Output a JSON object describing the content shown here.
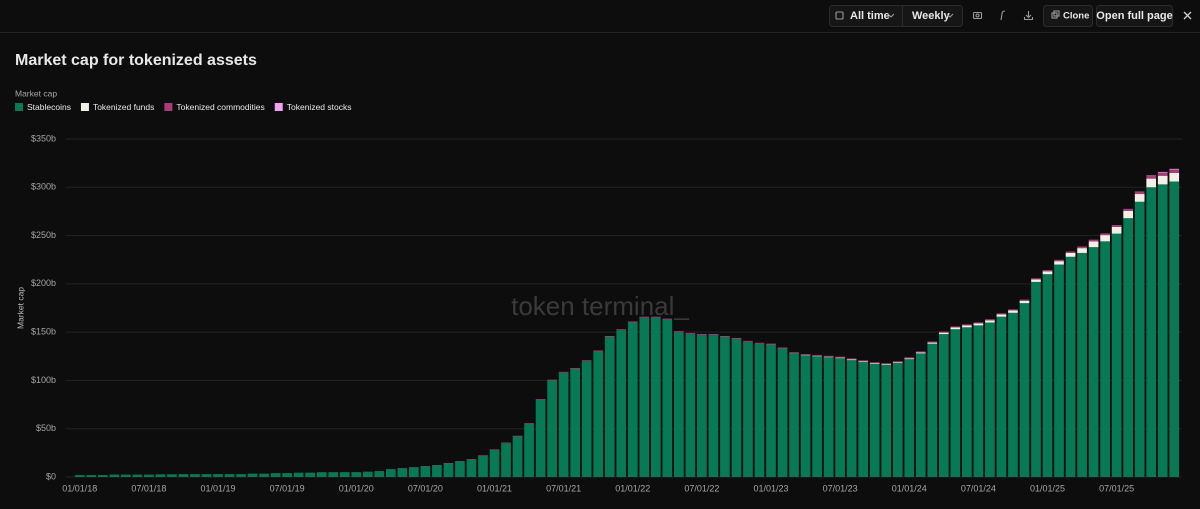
{
  "toolbar": {
    "range": "All time",
    "interval": "Weekly",
    "clone": "Clone",
    "open": "Open full page"
  },
  "chart_data": {
    "type": "bar",
    "stacked": true,
    "title": "Market cap for tokenized assets",
    "legend_title": "Market cap",
    "y_label": "Market cap",
    "watermark": "token terminal_",
    "grid": true,
    "ylim": [
      0,
      350
    ],
    "yticks": [
      {
        "value": 0,
        "label": "$0"
      },
      {
        "value": 50,
        "label": "$50b"
      },
      {
        "value": 100,
        "label": "$100b"
      },
      {
        "value": 150,
        "label": "$150b"
      },
      {
        "value": 200,
        "label": "$200b"
      },
      {
        "value": 250,
        "label": "$250b"
      },
      {
        "value": 300,
        "label": "$300b"
      },
      {
        "value": 350,
        "label": "$350b"
      }
    ],
    "categories": [
      "01/01/18",
      null,
      null,
      null,
      null,
      null,
      "07/01/18",
      null,
      null,
      null,
      null,
      null,
      "01/01/19",
      null,
      null,
      null,
      null,
      null,
      "07/01/19",
      null,
      null,
      null,
      null,
      null,
      "01/01/20",
      null,
      null,
      null,
      null,
      null,
      "07/01/20",
      null,
      null,
      null,
      null,
      null,
      "01/01/21",
      null,
      null,
      null,
      null,
      null,
      "07/01/21",
      null,
      null,
      null,
      null,
      null,
      "01/01/22",
      null,
      null,
      null,
      null,
      null,
      "07/01/22",
      null,
      null,
      null,
      null,
      null,
      "01/01/23",
      null,
      null,
      null,
      null,
      null,
      "07/01/23",
      null,
      null,
      null,
      null,
      null,
      "01/01/24",
      null,
      null,
      null,
      null,
      null,
      "07/01/24",
      null,
      null,
      null,
      null,
      null,
      "01/01/25",
      null,
      null,
      null,
      null,
      null,
      "07/01/25",
      null,
      null,
      null,
      null,
      null
    ],
    "series": [
      {
        "name": "Stablecoins",
        "color": "#077a55",
        "values": [
          2,
          2,
          2,
          2.5,
          2.5,
          2.5,
          2.5,
          2.8,
          2.8,
          3,
          3,
          3,
          3,
          3,
          3,
          3.5,
          3.5,
          4,
          4,
          4.5,
          4.5,
          5,
          5,
          5,
          5,
          5.5,
          6,
          8,
          9,
          10,
          11,
          12,
          14,
          16,
          18,
          22,
          28,
          35,
          42,
          55,
          80,
          100,
          108,
          112,
          120,
          130,
          145,
          152,
          160,
          165,
          165,
          163,
          150,
          148,
          147,
          147,
          145,
          143,
          140,
          138,
          137,
          133,
          128,
          126,
          125,
          124,
          123,
          121,
          119,
          117,
          116,
          118,
          122,
          128,
          138,
          148,
          153,
          155,
          157,
          160,
          166,
          170,
          180,
          202,
          210,
          220,
          228,
          232,
          238,
          244,
          252,
          268,
          285,
          300,
          303,
          306
        ]
      },
      {
        "name": "Tokenized funds",
        "color": "#f2efe6",
        "values": [
          0,
          0,
          0,
          0,
          0,
          0,
          0,
          0,
          0,
          0,
          0,
          0,
          0,
          0,
          0,
          0,
          0,
          0,
          0,
          0,
          0,
          0,
          0,
          0,
          0,
          0,
          0,
          0,
          0,
          0,
          0,
          0,
          0,
          0,
          0,
          0,
          0,
          0,
          0,
          0,
          0,
          0,
          0,
          0,
          0,
          0,
          0,
          0,
          0,
          0,
          0,
          0,
          0,
          0,
          0,
          0,
          0,
          0,
          0,
          0,
          0.1,
          0.1,
          0.2,
          0.3,
          0.4,
          0.5,
          0.6,
          0.7,
          0.8,
          0.8,
          0.8,
          0.8,
          0.9,
          1,
          1.2,
          1.5,
          1.8,
          2,
          2,
          2.2,
          2.3,
          2.4,
          2.5,
          2.6,
          3,
          3.5,
          4,
          5,
          6,
          6.5,
          7,
          7.5,
          8,
          9,
          9,
          9
        ]
      },
      {
        "name": "Tokenized commodities",
        "color": "#a83c7a",
        "values": [
          0,
          0,
          0,
          0,
          0,
          0,
          0,
          0,
          0,
          0,
          0,
          0,
          0,
          0,
          0,
          0,
          0,
          0,
          0,
          0,
          0,
          0,
          0,
          0,
          0.1,
          0.1,
          0.2,
          0.2,
          0.3,
          0.3,
          0.4,
          0.4,
          0.5,
          0.5,
          0.6,
          0.6,
          0.6,
          0.7,
          0.7,
          0.8,
          0.8,
          0.8,
          0.9,
          0.9,
          0.9,
          1,
          1,
          1,
          1,
          1,
          1,
          1,
          1,
          1,
          1,
          1,
          1,
          1,
          1,
          1,
          1,
          1,
          1,
          1,
          1,
          1,
          1,
          1,
          1,
          1,
          1,
          1,
          1,
          1,
          1.1,
          1.1,
          1.1,
          1.1,
          1.1,
          1.2,
          1.2,
          1.2,
          1.2,
          1.2,
          1.3,
          1.4,
          1.5,
          1.7,
          1.8,
          1.8,
          1.8,
          1.9,
          2.2,
          2.8,
          3.2,
          3.3
        ]
      },
      {
        "name": "Tokenized stocks",
        "color": "#f49ff0",
        "values": [
          0,
          0,
          0,
          0,
          0,
          0,
          0,
          0,
          0,
          0,
          0,
          0,
          0,
          0,
          0,
          0,
          0,
          0,
          0,
          0,
          0,
          0,
          0,
          0,
          0,
          0,
          0,
          0,
          0,
          0,
          0,
          0,
          0,
          0,
          0,
          0,
          0,
          0,
          0,
          0,
          0,
          0,
          0,
          0,
          0,
          0,
          0,
          0,
          0,
          0,
          0,
          0,
          0,
          0,
          0,
          0,
          0,
          0,
          0,
          0,
          0,
          0,
          0,
          0,
          0,
          0,
          0,
          0,
          0,
          0,
          0,
          0,
          0,
          0,
          0,
          0,
          0,
          0,
          0,
          0,
          0,
          0,
          0,
          0,
          0,
          0,
          0,
          0,
          0,
          0,
          0.1,
          0.2,
          0.3,
          0.5,
          0.7,
          0.8
        ]
      }
    ]
  }
}
